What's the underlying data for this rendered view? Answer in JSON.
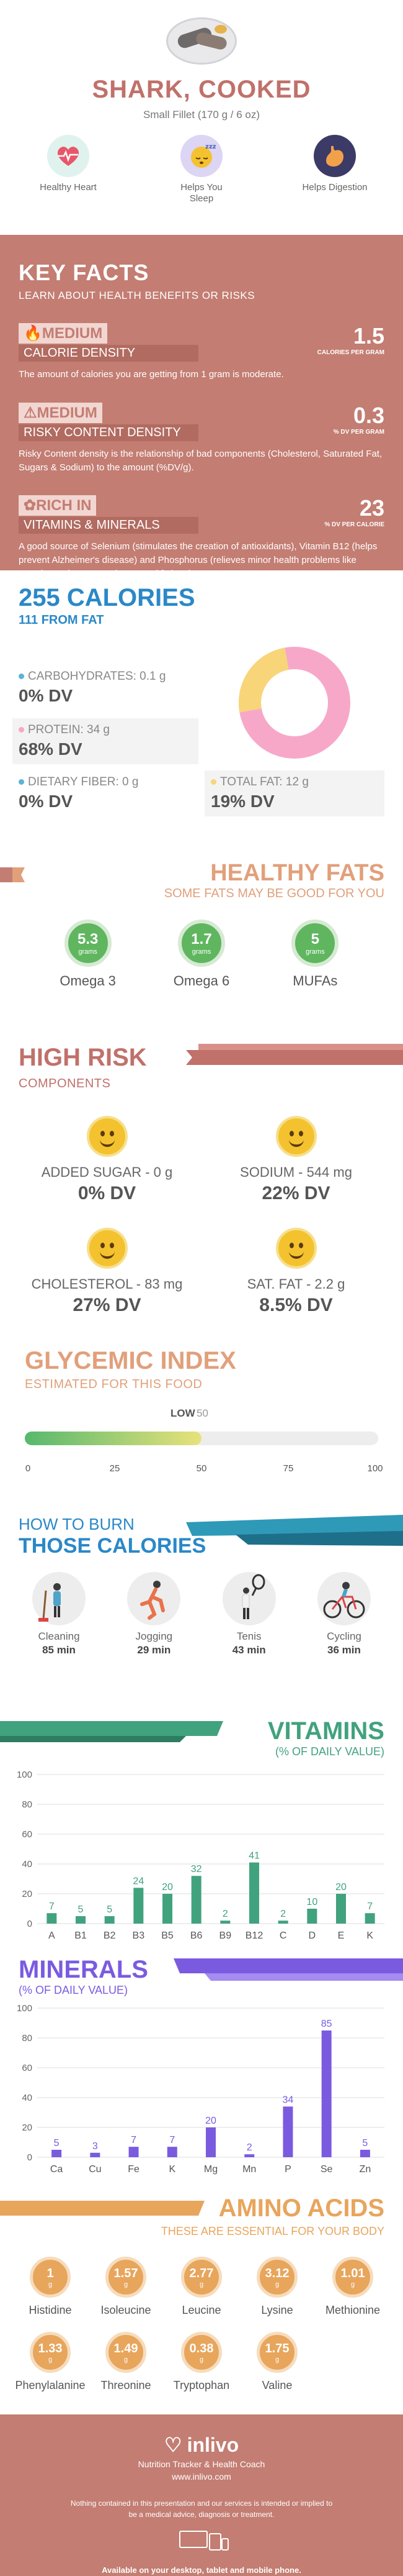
{
  "header": {
    "title": "SHARK, COOKED",
    "serving": "Small Fillet (170 g / 6 oz)",
    "benefits": [
      {
        "label": "Healthy Heart",
        "icon": "heart-monitor-icon",
        "color": "#dff2ee"
      },
      {
        "label": "Helps You Sleep",
        "icon": "sleeping-face-icon",
        "color": "#dcd5f3"
      },
      {
        "label": "Helps Digestion",
        "icon": "stomach-icon",
        "color": "#3c3a66"
      }
    ]
  },
  "key_facts": {
    "title": "KEY FACTS",
    "subtitle": "LEARN ABOUT HEALTH BENEFITS OR RISKS",
    "facts": [
      {
        "level": "MEDIUM",
        "name": "CALORIE DENSITY",
        "value": "1.5",
        "unit": "CALORIES PER GRAM",
        "text": "The amount of calories you are getting from 1 gram is moderate.",
        "icon": "flame-icon"
      },
      {
        "level": "MEDIUM",
        "name": "RISKY CONTENT DENSITY",
        "value": "0.3",
        "unit": "% DV PER GRAM",
        "text": "Risky Content density is the relationship of bad components (Cholesterol, Saturated Fat, Sugars & Sodium) to the amount (%DV/g).",
        "icon": "warning-icon"
      },
      {
        "level": "RICH IN",
        "name": "VITAMINS & MINERALS",
        "value": "23",
        "unit": "% DV PER CALORIE",
        "text": "A good source of Selenium (stimulates the creation of antioxidants), Vitamin B12 (helps prevent Alzheimer's disease) and Phosphorus (relieves minor health problems like muscle weakness, numbness and fatigue).",
        "icon": "leaf-icon"
      }
    ]
  },
  "calories": {
    "title": "255 CALORIES",
    "subtitle": "111 FROM FAT",
    "carbs_label": "CARBOHYDRATES: 0.1 g",
    "carbs_dv": "0% DV",
    "protein_label": "PROTEIN: 34 g",
    "protein_dv": "68% DV",
    "fiber_label": "DIETARY FIBER: 0 g",
    "fiber_dv": "0% DV",
    "fat_label": "TOTAL FAT: 12 g",
    "fat_dv": "19% DV",
    "colors": {
      "carbs": "#5bb3d6",
      "protein": "#f7a8c9",
      "fiber": "#5bb3d6",
      "fat": "#f9d57a"
    }
  },
  "fats": {
    "title": "HEALTHY FATS",
    "subtitle": "SOME FATS MAY BE GOOD FOR YOU",
    "items": [
      {
        "value": "5.3",
        "unit": "grams",
        "label": "Omega 3"
      },
      {
        "value": "1.7",
        "unit": "grams",
        "label": "Omega 6"
      },
      {
        "value": "5",
        "unit": "grams",
        "label": "MUFAs"
      }
    ]
  },
  "risk": {
    "title": "HIGH RISK",
    "subtitle": "COMPONENTS",
    "items": [
      {
        "label": "ADDED SUGAR - 0 g",
        "dv": "0% DV"
      },
      {
        "label": "SODIUM - 544 mg",
        "dv": "22% DV"
      },
      {
        "label": "CHOLESTEROL - 83 mg",
        "dv": "27% DV"
      },
      {
        "label": "SAT. FAT - 2.2 g",
        "dv": "8.5% DV"
      }
    ]
  },
  "glycemic": {
    "title": "GLYCEMIC INDEX",
    "subtitle": "ESTIMATED FOR THIS FOOD",
    "level": "LOW",
    "value": "50",
    "value_num": 50,
    "ticks": [
      "0",
      "25",
      "50",
      "75",
      "100"
    ]
  },
  "burn": {
    "line1": "HOW TO BURN",
    "line2": "THOSE CALORIES",
    "activities": [
      {
        "label": "Cleaning",
        "time": "85 min",
        "icon": "cleaning-icon"
      },
      {
        "label": "Jogging",
        "time": "29 min",
        "icon": "jogging-icon"
      },
      {
        "label": "Tenis",
        "time": "43 min",
        "icon": "tennis-icon"
      },
      {
        "label": "Cycling",
        "time": "36 min",
        "icon": "cycling-icon"
      }
    ]
  },
  "vitamins": {
    "title": "VITAMINS",
    "subtitle": "(% OF DAILY VALUE)"
  },
  "minerals": {
    "title": "MINERALS",
    "subtitle": "(% OF DAILY VALUE)"
  },
  "chart_data": [
    {
      "type": "bar",
      "categories": [
        "A",
        "B1",
        "B2",
        "B3",
        "B5",
        "B6",
        "B9",
        "B12",
        "C",
        "D",
        "E",
        "K"
      ],
      "values": [
        7,
        5,
        5,
        24,
        20,
        32,
        2,
        41,
        2,
        10,
        20,
        7
      ],
      "ylim": [
        0,
        100
      ],
      "yticks": [
        "0",
        "20",
        "40",
        "60",
        "80",
        "100"
      ],
      "color": "#41a27e"
    },
    {
      "type": "bar",
      "categories": [
        "Ca",
        "Cu",
        "Fe",
        "K",
        "Mg",
        "Mn",
        "P",
        "Se",
        "Zn"
      ],
      "values": [
        5,
        3,
        7,
        7,
        20,
        2,
        34,
        85,
        5
      ],
      "ylim": [
        0,
        100
      ],
      "yticks": [
        "0",
        "20",
        "40",
        "60",
        "80",
        "100"
      ],
      "color": "#7a5be0"
    }
  ],
  "amino": {
    "title": "AMINO ACIDS",
    "subtitle": "THESE ARE ESSENTIAL FOR YOUR BODY",
    "unit": "g",
    "items": [
      {
        "value": "1",
        "label": "Histidine"
      },
      {
        "value": "1.57",
        "label": "Isoleucine"
      },
      {
        "value": "2.77",
        "label": "Leucine"
      },
      {
        "value": "3.12",
        "label": "Lysine"
      },
      {
        "value": "1.01",
        "label": "Methionine"
      },
      {
        "value": "1.33",
        "label": "Phenylalanine"
      },
      {
        "value": "1.49",
        "label": "Threonine"
      },
      {
        "value": "0.38",
        "label": "Tryptophan"
      },
      {
        "value": "1.75",
        "label": "Valine"
      }
    ]
  },
  "footer": {
    "brand": "inlivo",
    "tagline": "Nutrition Tracker & Health Coach",
    "url": "www.inlivo.com",
    "disclaimer": "Nothing contained in this presentation and our services is intended or implied to be a medical advice, diagnosis or treatment.",
    "available": "Available on your desktop, tablet and mobile phone."
  }
}
